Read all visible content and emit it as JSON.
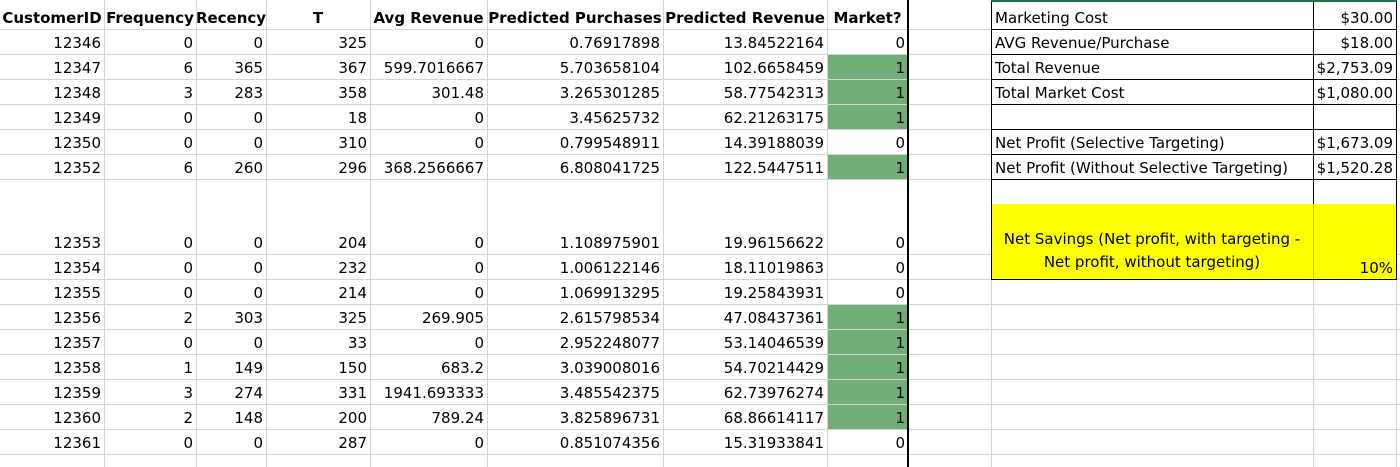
{
  "table": {
    "headers": [
      "CustomerID",
      "Frequency",
      "Recency",
      "T",
      "Avg Revenue",
      "Predicted Purchases",
      "Predicted Revenue",
      "Market?"
    ],
    "rows": [
      [
        "12346",
        "0",
        "0",
        "325",
        "0",
        "0.76917898",
        "13.84522164",
        "0"
      ],
      [
        "12347",
        "6",
        "365",
        "367",
        "599.7016667",
        "5.703658104",
        "102.6658459",
        "1"
      ],
      [
        "12348",
        "3",
        "283",
        "358",
        "301.48",
        "3.265301285",
        "58.77542313",
        "1"
      ],
      [
        "12349",
        "0",
        "0",
        "18",
        "0",
        "3.45625732",
        "62.21263175",
        "1"
      ],
      [
        "12350",
        "0",
        "0",
        "310",
        "0",
        "0.799548911",
        "14.39188039",
        "0"
      ],
      [
        "12352",
        "6",
        "260",
        "296",
        "368.2566667",
        "6.808041725",
        "122.5447511",
        "1"
      ],
      [
        "12353",
        "0",
        "0",
        "204",
        "0",
        "1.108975901",
        "19.96156622",
        "0"
      ],
      [
        "12354",
        "0",
        "0",
        "232",
        "0",
        "1.006122146",
        "18.11019863",
        "0"
      ],
      [
        "12355",
        "0",
        "0",
        "214",
        "0",
        "1.069913295",
        "19.25843931",
        "0"
      ],
      [
        "12356",
        "2",
        "303",
        "325",
        "269.905",
        "2.615798534",
        "47.08437361",
        "1"
      ],
      [
        "12357",
        "0",
        "0",
        "33",
        "0",
        "2.952248077",
        "53.14046539",
        "1"
      ],
      [
        "12358",
        "1",
        "149",
        "150",
        "683.2",
        "3.039008016",
        "54.70214429",
        "1"
      ],
      [
        "12359",
        "3",
        "274",
        "331",
        "1941.693333",
        "3.485542375",
        "62.73976274",
        "1"
      ],
      [
        "12360",
        "2",
        "148",
        "200",
        "789.24",
        "3.825896731",
        "68.86614117",
        "1"
      ],
      [
        "12361",
        "0",
        "0",
        "287",
        "0",
        "0.851074356",
        "15.31933841",
        "0"
      ]
    ],
    "highlight_color": "#70ad77"
  },
  "summary": {
    "items": [
      {
        "label": "Marketing Cost",
        "value": "$30.00"
      },
      {
        "label": "AVG Revenue/Purchase",
        "value": "$18.00"
      },
      {
        "label": "Total Revenue",
        "value": "$2,753.09"
      },
      {
        "label": "Total Market Cost",
        "value": "$1,080.00"
      },
      {
        "label": "",
        "value": ""
      },
      {
        "label": "Net Profit (Selective Targeting)",
        "value": "$1,673.09"
      },
      {
        "label": "Net Profit (Without Selective Targeting)",
        "value": "$1,520.28"
      },
      {
        "label": "",
        "value": ""
      }
    ],
    "savings_label_line1": "Net Savings (Net profit, with targeting -",
    "savings_label_line2": "Net profit, without targeting)",
    "savings_value": "10%",
    "savings_color": "#ffff00"
  }
}
